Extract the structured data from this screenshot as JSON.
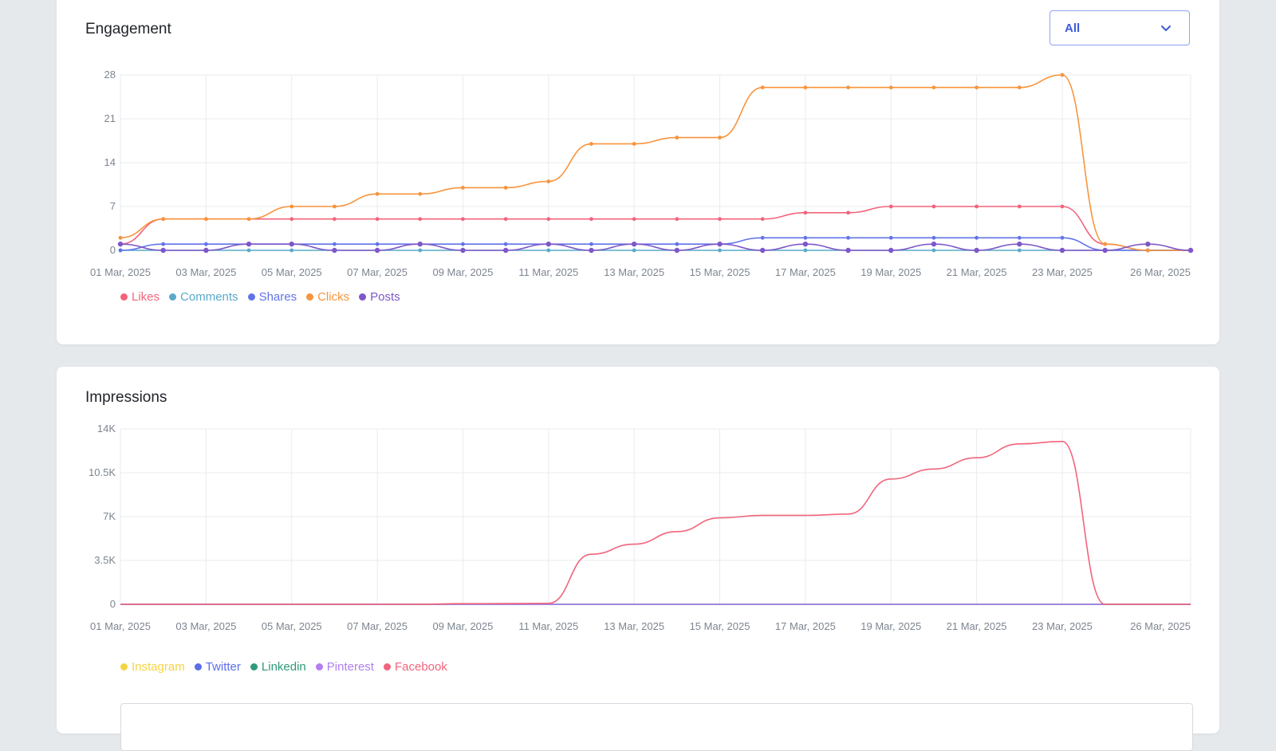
{
  "engagement": {
    "title": "Engagement",
    "filter": {
      "selected": "All"
    }
  },
  "impressions": {
    "title": "Impressions"
  },
  "chart_data": [
    {
      "type": "line",
      "title": "Engagement",
      "x": [
        "01 Mar, 2025",
        "02 Mar, 2025",
        "03 Mar, 2025",
        "04 Mar, 2025",
        "05 Mar, 2025",
        "06 Mar, 2025",
        "07 Mar, 2025",
        "08 Mar, 2025",
        "09 Mar, 2025",
        "10 Mar, 2025",
        "11 Mar, 2025",
        "12 Mar, 2025",
        "13 Mar, 2025",
        "14 Mar, 2025",
        "15 Mar, 2025",
        "16 Mar, 2025",
        "17 Mar, 2025",
        "18 Mar, 2025",
        "19 Mar, 2025",
        "20 Mar, 2025",
        "21 Mar, 2025",
        "22 Mar, 2025",
        "23 Mar, 2025",
        "24 Mar, 2025",
        "25 Mar, 2025",
        "26 Mar, 2025"
      ],
      "tick_labels": [
        "01 Mar, 2025",
        "03 Mar, 2025",
        "05 Mar, 2025",
        "07 Mar, 2025",
        "09 Mar, 2025",
        "11 Mar, 2025",
        "13 Mar, 2025",
        "15 Mar, 2025",
        "17 Mar, 2025",
        "19 Mar, 2025",
        "21 Mar, 2025",
        "23 Mar, 2025",
        "26 Mar, 2025"
      ],
      "y_ticks": [
        "0",
        "7",
        "14",
        "21",
        "28"
      ],
      "ylim": [
        0,
        28
      ],
      "grid": true,
      "legend": "bottom-left",
      "series": [
        {
          "name": "Likes",
          "color": "#f2647c",
          "values": [
            1,
            5,
            5,
            5,
            5,
            5,
            5,
            5,
            5,
            5,
            5,
            5,
            5,
            5,
            5,
            5,
            6,
            6,
            7,
            7,
            7,
            7,
            7,
            1,
            0,
            0
          ]
        },
        {
          "name": "Comments",
          "color": "#5aa9c9",
          "values": [
            0,
            0,
            0,
            0,
            0,
            0,
            0,
            0,
            0,
            0,
            0,
            0,
            0,
            0,
            0,
            0,
            0,
            0,
            0,
            0,
            0,
            0,
            0,
            0,
            0,
            0
          ]
        },
        {
          "name": "Shares",
          "color": "#6273e8",
          "values": [
            0,
            1,
            1,
            1,
            1,
            1,
            1,
            1,
            1,
            1,
            1,
            1,
            1,
            1,
            1,
            2,
            2,
            2,
            2,
            2,
            2,
            2,
            2,
            0,
            0,
            0
          ]
        },
        {
          "name": "Clicks",
          "color": "#f7943c",
          "values": [
            2,
            5,
            5,
            5,
            7,
            7,
            9,
            9,
            10,
            10,
            11,
            17,
            17,
            18,
            18,
            26,
            26,
            26,
            26,
            26,
            26,
            26,
            28,
            1,
            0,
            0
          ]
        },
        {
          "name": "Posts",
          "color": "#7e57c8",
          "values": [
            1,
            0,
            0,
            1,
            1,
            0,
            0,
            1,
            0,
            0,
            1,
            0,
            1,
            0,
            1,
            0,
            1,
            0,
            0,
            1,
            0,
            1,
            0,
            0,
            1,
            0
          ]
        }
      ]
    },
    {
      "type": "line",
      "title": "Impressions",
      "x": [
        "01 Mar, 2025",
        "02 Mar, 2025",
        "03 Mar, 2025",
        "04 Mar, 2025",
        "05 Mar, 2025",
        "06 Mar, 2025",
        "07 Mar, 2025",
        "08 Mar, 2025",
        "09 Mar, 2025",
        "10 Mar, 2025",
        "11 Mar, 2025",
        "12 Mar, 2025",
        "13 Mar, 2025",
        "14 Mar, 2025",
        "15 Mar, 2025",
        "16 Mar, 2025",
        "17 Mar, 2025",
        "18 Mar, 2025",
        "19 Mar, 2025",
        "20 Mar, 2025",
        "21 Mar, 2025",
        "22 Mar, 2025",
        "23 Mar, 2025",
        "24 Mar, 2025",
        "25 Mar, 2025",
        "26 Mar, 2025"
      ],
      "tick_labels": [
        "01 Mar, 2025",
        "03 Mar, 2025",
        "05 Mar, 2025",
        "07 Mar, 2025",
        "09 Mar, 2025",
        "11 Mar, 2025",
        "13 Mar, 2025",
        "15 Mar, 2025",
        "17 Mar, 2025",
        "19 Mar, 2025",
        "21 Mar, 2025",
        "23 Mar, 2025",
        "26 Mar, 2025"
      ],
      "y_ticks": [
        "0",
        "3.5K",
        "7K",
        "10.5K",
        "14K"
      ],
      "ylim": [
        0,
        14000
      ],
      "grid": true,
      "legend": "bottom-left",
      "series": [
        {
          "name": "Instagram",
          "color": "#f5d442",
          "values": [
            0,
            0,
            0,
            0,
            0,
            0,
            0,
            0,
            0,
            0,
            0,
            0,
            0,
            0,
            0,
            0,
            0,
            0,
            0,
            0,
            0,
            0,
            0,
            0,
            0,
            0
          ]
        },
        {
          "name": "Twitter",
          "color": "#5b6ee8",
          "values": [
            0,
            0,
            0,
            0,
            0,
            0,
            0,
            0,
            0,
            0,
            0,
            0,
            0,
            0,
            0,
            0,
            0,
            0,
            0,
            0,
            0,
            0,
            0,
            0,
            0,
            0
          ]
        },
        {
          "name": "Linkedin",
          "color": "#2e9a78",
          "values": [
            0,
            0,
            0,
            0,
            0,
            0,
            0,
            0,
            0,
            0,
            0,
            0,
            0,
            0,
            0,
            0,
            0,
            0,
            0,
            0,
            0,
            0,
            0,
            0,
            0,
            0
          ]
        },
        {
          "name": "Pinterest",
          "color": "#b27ef0",
          "values": [
            0,
            0,
            0,
            0,
            0,
            0,
            0,
            0,
            0,
            0,
            0,
            0,
            0,
            0,
            0,
            0,
            0,
            0,
            0,
            0,
            0,
            0,
            0,
            0,
            0,
            0
          ]
        },
        {
          "name": "Facebook",
          "color": "#f2647c",
          "values": [
            0,
            0,
            0,
            0,
            0,
            0,
            0,
            0,
            50,
            60,
            80,
            4000,
            4800,
            5800,
            6900,
            7100,
            7100,
            7200,
            10000,
            10800,
            11700,
            12800,
            13000,
            0,
            0,
            0
          ]
        }
      ]
    }
  ]
}
